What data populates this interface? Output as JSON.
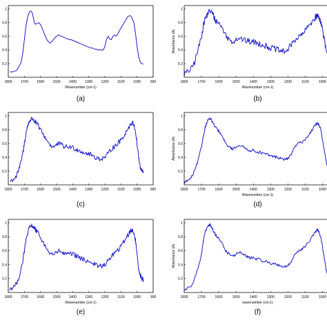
{
  "chart_data": [
    {
      "type": "line",
      "caption": "(a)",
      "xlabel": "Wavenumber (cm-1)",
      "ylabel": "",
      "xlim": [
        1800,
        900
      ],
      "ylim": [
        0,
        1.05
      ],
      "xticks": [
        1800,
        1700,
        1600,
        1500,
        1400,
        1300,
        1200,
        1100,
        1000,
        900
      ],
      "yticks": [
        0.2,
        0.4,
        0.6,
        0.8,
        1
      ],
      "x": [
        1790,
        1770,
        1750,
        1740,
        1720,
        1710,
        1700,
        1690,
        1680,
        1670,
        1660,
        1655,
        1650,
        1645,
        1640,
        1635,
        1625,
        1610,
        1600,
        1590,
        1580,
        1570,
        1560,
        1550,
        1545,
        1540,
        1530,
        1520,
        1510,
        1500,
        1490,
        1480,
        1470,
        1460,
        1450,
        1440,
        1430,
        1420,
        1410,
        1400,
        1390,
        1380,
        1370,
        1360,
        1350,
        1340,
        1330,
        1320,
        1310,
        1300,
        1290,
        1280,
        1270,
        1260,
        1250,
        1240,
        1230,
        1220,
        1210,
        1200,
        1190,
        1180,
        1170,
        1160,
        1150,
        1140,
        1130,
        1120,
        1110,
        1100,
        1090,
        1080,
        1070,
        1060,
        1050,
        1040,
        1030,
        1020,
        1010,
        1000,
        990,
        980,
        970,
        960
      ],
      "y": [
        0.08,
        0.08,
        0.1,
        0.13,
        0.22,
        0.35,
        0.55,
        0.75,
        0.88,
        0.95,
        0.97,
        0.96,
        0.93,
        0.88,
        0.82,
        0.78,
        0.78,
        0.8,
        0.77,
        0.72,
        0.66,
        0.6,
        0.55,
        0.52,
        0.51,
        0.5,
        0.52,
        0.55,
        0.58,
        0.6,
        0.62,
        0.61,
        0.6,
        0.59,
        0.58,
        0.57,
        0.56,
        0.55,
        0.55,
        0.54,
        0.53,
        0.52,
        0.51,
        0.5,
        0.49,
        0.48,
        0.47,
        0.46,
        0.45,
        0.44,
        0.43,
        0.43,
        0.42,
        0.41,
        0.41,
        0.4,
        0.4,
        0.4,
        0.4,
        0.45,
        0.55,
        0.6,
        0.56,
        0.55,
        0.6,
        0.62,
        0.6,
        0.63,
        0.68,
        0.72,
        0.76,
        0.8,
        0.84,
        0.88,
        0.9,
        0.9,
        0.86,
        0.8,
        0.65,
        0.45,
        0.3,
        0.22,
        0.2,
        0.19
      ],
      "noise": 0
    },
    {
      "type": "line",
      "caption": "(b)",
      "xlabel": "Wavenumber (cm-1)",
      "ylabel": "Absorbance (A)",
      "xlim": [
        1800,
        950
      ],
      "ylim": [
        0,
        1.05
      ],
      "xticks": [
        1800,
        1700,
        1600,
        1500,
        1400,
        1300,
        1200,
        1100,
        1000
      ],
      "yticks": [
        0.2,
        0.4,
        0.6,
        0.8,
        1
      ],
      "x": [
        1800,
        1780,
        1760,
        1740,
        1720,
        1700,
        1690,
        1680,
        1670,
        1660,
        1650,
        1640,
        1630,
        1620,
        1600,
        1580,
        1560,
        1540,
        1520,
        1500,
        1480,
        1460,
        1440,
        1420,
        1400,
        1380,
        1360,
        1340,
        1320,
        1300,
        1280,
        1260,
        1240,
        1220,
        1200,
        1180,
        1160,
        1140,
        1120,
        1100,
        1080,
        1060,
        1040,
        1030,
        1020,
        1010,
        1000,
        990,
        980,
        970,
        960,
        950
      ],
      "y": [
        0.05,
        0.08,
        0.12,
        0.22,
        0.4,
        0.6,
        0.75,
        0.85,
        0.9,
        0.95,
        0.97,
        0.95,
        0.9,
        0.83,
        0.8,
        0.72,
        0.62,
        0.55,
        0.52,
        0.56,
        0.58,
        0.55,
        0.53,
        0.52,
        0.52,
        0.5,
        0.49,
        0.47,
        0.45,
        0.43,
        0.42,
        0.4,
        0.38,
        0.38,
        0.4,
        0.48,
        0.55,
        0.58,
        0.62,
        0.68,
        0.75,
        0.82,
        0.88,
        0.9,
        0.88,
        0.82,
        0.7,
        0.55,
        0.4,
        0.3,
        0.25,
        0.22
      ],
      "noise": 0.045
    },
    {
      "type": "line",
      "caption": "(c)",
      "xlabel": "",
      "ylabel": "",
      "xlim": [
        1800,
        900
      ],
      "ylim": [
        0,
        1.05
      ],
      "xticks": [
        1800,
        1700,
        1600,
        1500,
        1400,
        1300,
        1200,
        1100,
        1000,
        900
      ],
      "yticks": [
        0.2,
        0.4,
        0.6,
        0.8,
        1
      ],
      "x": [
        1790,
        1770,
        1750,
        1730,
        1710,
        1700,
        1690,
        1680,
        1670,
        1660,
        1650,
        1640,
        1630,
        1620,
        1600,
        1580,
        1560,
        1540,
        1520,
        1500,
        1480,
        1460,
        1440,
        1420,
        1400,
        1380,
        1360,
        1340,
        1320,
        1300,
        1280,
        1260,
        1240,
        1220,
        1200,
        1180,
        1160,
        1140,
        1120,
        1100,
        1080,
        1060,
        1040,
        1030,
        1020,
        1010,
        1000,
        990,
        980,
        970,
        960
      ],
      "y": [
        0.05,
        0.08,
        0.12,
        0.25,
        0.45,
        0.6,
        0.75,
        0.85,
        0.92,
        0.95,
        0.96,
        0.93,
        0.9,
        0.88,
        0.8,
        0.72,
        0.65,
        0.58,
        0.55,
        0.58,
        0.6,
        0.56,
        0.55,
        0.55,
        0.54,
        0.52,
        0.5,
        0.48,
        0.46,
        0.45,
        0.43,
        0.4,
        0.38,
        0.38,
        0.4,
        0.45,
        0.52,
        0.56,
        0.6,
        0.65,
        0.72,
        0.8,
        0.88,
        0.9,
        0.88,
        0.78,
        0.6,
        0.4,
        0.25,
        0.2,
        0.18
      ],
      "noise": 0.035
    },
    {
      "type": "line",
      "caption": "(d)",
      "xlabel": "Wavenumber (cm-1)",
      "ylabel": "Absorbance (A)",
      "xlim": [
        1800,
        950
      ],
      "ylim": [
        0,
        1.05
      ],
      "xticks": [
        1800,
        1700,
        1600,
        1500,
        1400,
        1300,
        1200,
        1100,
        1000
      ],
      "yticks": [
        0.2,
        0.4,
        0.6,
        0.8,
        1
      ],
      "x": [
        1800,
        1780,
        1760,
        1740,
        1720,
        1700,
        1690,
        1680,
        1670,
        1660,
        1650,
        1640,
        1630,
        1620,
        1600,
        1580,
        1560,
        1540,
        1520,
        1500,
        1480,
        1460,
        1440,
        1420,
        1400,
        1380,
        1360,
        1340,
        1320,
        1300,
        1280,
        1260,
        1240,
        1220,
        1200,
        1180,
        1160,
        1140,
        1120,
        1100,
        1080,
        1060,
        1040,
        1030,
        1020,
        1010,
        1000,
        990,
        980,
        970,
        960,
        950
      ],
      "y": [
        0.04,
        0.06,
        0.1,
        0.2,
        0.35,
        0.55,
        0.7,
        0.82,
        0.9,
        0.95,
        0.96,
        0.93,
        0.88,
        0.83,
        0.78,
        0.7,
        0.6,
        0.55,
        0.52,
        0.55,
        0.58,
        0.55,
        0.52,
        0.5,
        0.5,
        0.48,
        0.47,
        0.45,
        0.44,
        0.42,
        0.41,
        0.4,
        0.38,
        0.37,
        0.38,
        0.45,
        0.55,
        0.6,
        0.62,
        0.66,
        0.72,
        0.8,
        0.87,
        0.9,
        0.87,
        0.8,
        0.65,
        0.5,
        0.35,
        0.25,
        0.2,
        0.18
      ],
      "noise": 0.02
    },
    {
      "type": "line",
      "caption": "(e)",
      "xlabel": "Wavenumber (cm-1)",
      "ylabel": "",
      "xlim": [
        1800,
        900
      ],
      "ylim": [
        0,
        1.05
      ],
      "xticks": [
        1800,
        1700,
        1600,
        1500,
        1400,
        1300,
        1200,
        1100,
        1000,
        900
      ],
      "yticks": [
        0.2,
        0.4,
        0.6,
        0.8,
        1
      ],
      "x": [
        1790,
        1770,
        1750,
        1730,
        1710,
        1700,
        1690,
        1680,
        1670,
        1660,
        1650,
        1640,
        1630,
        1620,
        1600,
        1580,
        1560,
        1540,
        1520,
        1500,
        1480,
        1460,
        1440,
        1420,
        1400,
        1380,
        1360,
        1340,
        1320,
        1300,
        1280,
        1260,
        1240,
        1220,
        1200,
        1180,
        1160,
        1140,
        1120,
        1100,
        1080,
        1060,
        1040,
        1030,
        1020,
        1010,
        1000,
        990,
        980,
        970,
        960
      ],
      "y": [
        0.05,
        0.08,
        0.12,
        0.25,
        0.45,
        0.6,
        0.75,
        0.85,
        0.92,
        0.95,
        0.96,
        0.93,
        0.9,
        0.86,
        0.8,
        0.7,
        0.62,
        0.56,
        0.55,
        0.57,
        0.6,
        0.56,
        0.55,
        0.55,
        0.55,
        0.53,
        0.5,
        0.48,
        0.46,
        0.45,
        0.43,
        0.4,
        0.38,
        0.38,
        0.4,
        0.45,
        0.52,
        0.57,
        0.6,
        0.66,
        0.74,
        0.82,
        0.88,
        0.9,
        0.86,
        0.75,
        0.55,
        0.35,
        0.25,
        0.2,
        0.18
      ],
      "noise": 0.035
    },
    {
      "type": "line",
      "caption": "(f)",
      "xlabel": "wavenumber (cm-1)",
      "ylabel": "Absorbance (A)",
      "xlim": [
        1800,
        950
      ],
      "ylim": [
        0,
        1.05
      ],
      "xticks": [
        1800,
        1700,
        1600,
        1500,
        1400,
        1300,
        1200,
        1100,
        1000
      ],
      "yticks": [
        0.2,
        0.4,
        0.6,
        0.8,
        1
      ],
      "x": [
        1800,
        1780,
        1760,
        1740,
        1720,
        1700,
        1690,
        1680,
        1670,
        1660,
        1650,
        1640,
        1630,
        1620,
        1600,
        1580,
        1560,
        1540,
        1520,
        1500,
        1480,
        1460,
        1440,
        1420,
        1400,
        1380,
        1360,
        1340,
        1320,
        1300,
        1280,
        1260,
        1240,
        1220,
        1200,
        1180,
        1160,
        1140,
        1120,
        1100,
        1080,
        1060,
        1040,
        1030,
        1020,
        1010,
        1000,
        990,
        980,
        970,
        960,
        950
      ],
      "y": [
        0.04,
        0.06,
        0.1,
        0.2,
        0.35,
        0.55,
        0.72,
        0.85,
        0.92,
        0.96,
        0.97,
        0.93,
        0.88,
        0.83,
        0.78,
        0.7,
        0.6,
        0.55,
        0.52,
        0.55,
        0.58,
        0.55,
        0.52,
        0.5,
        0.5,
        0.48,
        0.47,
        0.45,
        0.44,
        0.42,
        0.41,
        0.4,
        0.38,
        0.37,
        0.38,
        0.45,
        0.55,
        0.6,
        0.62,
        0.66,
        0.72,
        0.8,
        0.87,
        0.9,
        0.87,
        0.8,
        0.65,
        0.5,
        0.35,
        0.25,
        0.2,
        0.18
      ],
      "noise": 0.02
    }
  ],
  "style": {
    "line_color": "#1a1acc",
    "axis_color": "#000000"
  }
}
